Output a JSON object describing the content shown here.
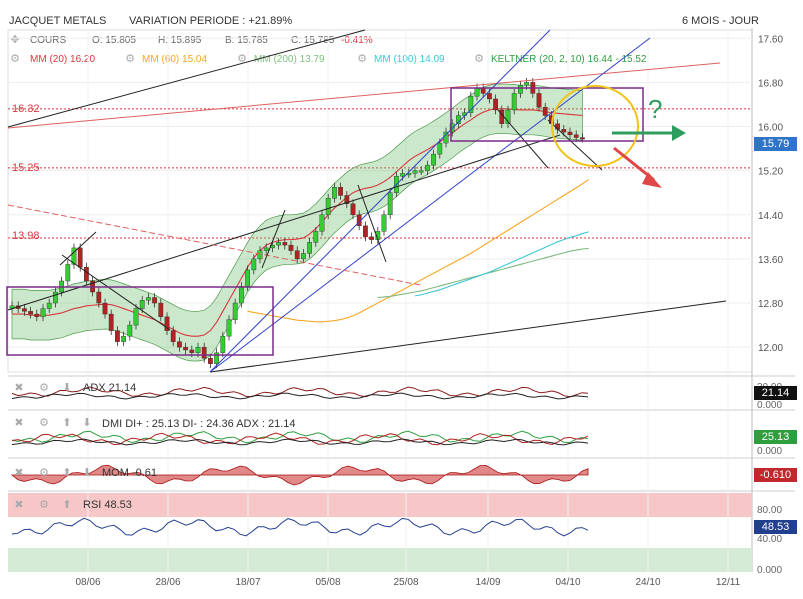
{
  "header": {
    "stock": "JACQUET METALS",
    "variation": "VARIATION PERIODE : +21.89%",
    "period": "6 MOIS - JOUR"
  },
  "quote": {
    "label": "COURS",
    "open": "O: 15.805",
    "high": "H: 15.895",
    "low": "B: 15.785",
    "close": "C: 15.785",
    "change": "-0.41%"
  },
  "indicators": [
    {
      "label": "MM (20)",
      "value": "16.20",
      "color": "#d9363e"
    },
    {
      "label": "MM (60)",
      "value": "15.04",
      "color": "#f5a623"
    },
    {
      "label": "MM (200)",
      "value": "13.79",
      "color": "#7fc27f"
    },
    {
      "label": "MM (100)",
      "value": "14.09",
      "color": "#3ec6d6"
    },
    {
      "label": "KELTNER (20, 2, 10)",
      "value": "16.44 - 15.52",
      "color": "#2e9e3e"
    }
  ],
  "levels": [
    "16.32",
    "15.25",
    "13.98"
  ],
  "price_badge": "15.79",
  "annotation": "?",
  "panels": {
    "adx": {
      "title": "ADX 21.14",
      "badge": "21.14",
      "top_tick": "30.00",
      "bottom_tick": "0.000"
    },
    "dmi": {
      "title": "DMI DI+ : 25.13 DI- : 24.36 ADX : 21.14",
      "badge": "25.13",
      "bottom_tick": "0.000"
    },
    "mom": {
      "title": "MOM -0.61",
      "badge": "-0.610"
    },
    "rsi": {
      "title": "RSI 48.53",
      "badge": "48.53",
      "ticks": [
        "80.00",
        "40.00",
        "0.000"
      ]
    }
  },
  "chart_data": {
    "type": "line",
    "title": "JACQUET METALS",
    "x_ticks": [
      "08/06",
      "28/06",
      "18/07",
      "05/08",
      "25/08",
      "14/09",
      "04/10",
      "24/10",
      "12/11"
    ],
    "y_ticks": [
      17.6,
      16.8,
      16.0,
      15.2,
      14.4,
      13.6,
      12.8,
      12.0
    ],
    "ylim": [
      11.55,
      17.75
    ],
    "series": [
      {
        "name": "COURS",
        "values": [
          12.75,
          12.7,
          12.65,
          12.6,
          12.55,
          12.7,
          12.8,
          13.0,
          13.2,
          13.5,
          13.8,
          13.45,
          13.2,
          13.0,
          12.8,
          12.6,
          12.3,
          12.1,
          12.2,
          12.4,
          12.7,
          12.85,
          12.9,
          12.8,
          12.55,
          12.3,
          12.1,
          12.0,
          11.95,
          11.9,
          12.0,
          11.8,
          11.7,
          11.9,
          12.2,
          12.5,
          12.8,
          13.1,
          13.4,
          13.6,
          13.75,
          13.8,
          13.85,
          13.9,
          13.85,
          13.75,
          13.6,
          13.7,
          13.9,
          14.1,
          14.4,
          14.7,
          14.9,
          14.75,
          14.6,
          14.4,
          14.2,
          14.0,
          13.95,
          14.1,
          14.4,
          14.8,
          15.1,
          15.15,
          15.15,
          15.2,
          15.2,
          15.3,
          15.5,
          15.7,
          15.9,
          16.05,
          16.2,
          16.25,
          16.55,
          16.7,
          16.6,
          16.5,
          16.3,
          16.05,
          16.3,
          16.6,
          16.75,
          16.8,
          16.6,
          16.35,
          16.2,
          16.05,
          15.95,
          15.9,
          15.85,
          15.8,
          15.79
        ]
      },
      {
        "name": "MM (20)",
        "values": [
          12.6,
          12.6,
          12.6,
          12.58,
          12.58,
          12.58,
          12.58,
          12.6,
          12.62,
          12.66,
          12.7,
          12.72,
          12.75,
          12.76,
          12.77,
          12.78,
          12.77,
          12.74,
          12.7,
          12.66,
          12.62,
          12.58,
          12.54,
          12.5,
          12.44,
          12.38,
          12.32,
          12.26,
          12.22,
          12.2,
          12.2,
          12.22,
          12.3,
          12.45,
          12.65,
          12.85,
          13.05,
          13.25,
          13.45,
          13.62,
          13.75,
          13.85,
          13.9,
          13.93,
          13.95,
          13.95,
          13.96,
          13.98,
          14.05,
          14.15,
          14.27,
          14.4,
          14.52,
          14.62,
          14.72,
          14.8,
          14.85,
          14.88,
          14.9,
          14.94,
          15.0,
          15.08,
          15.18,
          15.28,
          15.38,
          15.46,
          15.52,
          15.58,
          15.65,
          15.72,
          15.8,
          15.88,
          15.97,
          16.05,
          16.12,
          16.2,
          16.26,
          16.3,
          16.32,
          16.32,
          16.32,
          16.31,
          16.3,
          16.3,
          16.3,
          16.29,
          16.27,
          16.25,
          16.24,
          16.23,
          16.22,
          16.21,
          16.2
        ]
      },
      {
        "name": "MM (60)",
        "values": [
          12.65,
          12.63,
          12.61,
          12.59,
          12.57,
          12.55,
          12.53,
          12.51,
          12.49,
          12.48,
          12.47,
          12.46,
          12.46,
          12.47,
          12.48,
          12.5,
          12.53,
          12.57,
          12.62,
          12.68,
          12.74,
          12.8,
          12.86,
          12.92,
          12.98,
          13.04,
          13.1,
          13.16,
          13.22,
          13.28,
          13.34,
          13.4,
          13.46,
          13.52,
          13.58,
          13.64,
          13.7,
          13.77,
          13.84,
          13.91,
          13.98,
          14.05,
          14.12,
          14.19,
          14.26,
          14.33,
          14.4,
          14.47,
          14.54,
          14.61,
          14.68,
          14.75,
          14.82,
          14.89,
          14.96,
          15.04
        ]
      },
      {
        "name": "MM (200)",
        "values": [
          12.9,
          12.91,
          12.92,
          12.94,
          12.96,
          12.98,
          13.0,
          13.02,
          13.05,
          13.08,
          13.11,
          13.14,
          13.17,
          13.2,
          13.23,
          13.26,
          13.29,
          13.32,
          13.35,
          13.38,
          13.41,
          13.44,
          13.47,
          13.5,
          13.53,
          13.56,
          13.59,
          13.62,
          13.65,
          13.68,
          13.71,
          13.74,
          13.76,
          13.78,
          13.79
        ]
      },
      {
        "name": "MM (100)",
        "values": [
          12.93,
          12.95,
          12.98,
          13.01,
          13.04,
          13.08,
          13.12,
          13.16,
          13.2,
          13.24,
          13.28,
          13.32,
          13.36,
          13.41,
          13.46,
          13.51,
          13.56,
          13.61,
          13.66,
          13.71,
          13.76,
          13.81,
          13.86,
          13.91,
          13.95,
          13.99,
          14.02,
          14.06,
          14.09
        ]
      }
    ]
  }
}
